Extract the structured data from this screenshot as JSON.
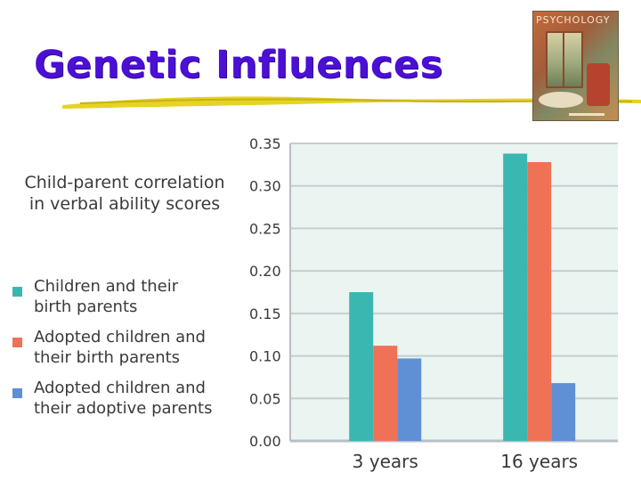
{
  "title": "Genetic Influences",
  "book_cover": {
    "title": "PSYCHOLOGY"
  },
  "chart_data": {
    "type": "bar",
    "ylabel_lines": [
      "Child-parent correlation",
      "in verbal ability scores"
    ],
    "categories": [
      "3 years",
      "16 years"
    ],
    "series": [
      {
        "name_lines": [
          "Children and their",
          "birth parents"
        ],
        "color": "#3bb7b2",
        "values": [
          0.175,
          0.338
        ]
      },
      {
        "name_lines": [
          "Adopted children and",
          "their birth parents"
        ],
        "color": "#ef7257",
        "values": [
          0.112,
          0.328
        ]
      },
      {
        "name_lines": [
          "Adopted children and",
          "their adoptive parents"
        ],
        "color": "#5f8fd4",
        "values": [
          0.097,
          0.068
        ]
      }
    ],
    "yticks": [
      "0.00",
      "0.05",
      "0.10",
      "0.15",
      "0.20",
      "0.25",
      "0.30",
      "0.35"
    ],
    "ylim": [
      0,
      0.35
    ],
    "grid": true,
    "legend_position": "left"
  }
}
